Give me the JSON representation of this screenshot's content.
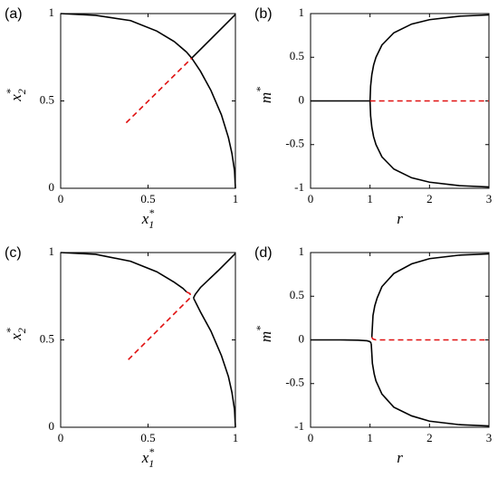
{
  "chart_data": [
    {
      "panel_label": "(a)",
      "type": "line",
      "xlabel": "x1*",
      "ylabel": "x2*",
      "xlim": [
        0,
        1
      ],
      "ylim": [
        0,
        1
      ],
      "xticks": [
        "0",
        "0.5",
        "1"
      ],
      "yticks": [
        "0",
        "0.5",
        "1"
      ],
      "series": [
        {
          "style": "solid-black",
          "x": [
            0,
            0.2,
            0.4,
            0.55,
            0.65,
            0.72,
            0.75,
            0.8,
            0.86,
            0.92,
            0.96,
            0.98,
            0.995,
            1.0
          ],
          "y": [
            1.0,
            0.99,
            0.96,
            0.9,
            0.84,
            0.78,
            0.745,
            0.67,
            0.56,
            0.42,
            0.29,
            0.2,
            0.1,
            0.0
          ]
        },
        {
          "style": "solid-black",
          "x": [
            0.75,
            0.8,
            0.9,
            1.0
          ],
          "y": [
            0.745,
            0.795,
            0.895,
            0.995
          ]
        },
        {
          "style": "dashed-red",
          "x": [
            0.375,
            0.75
          ],
          "y": [
            0.375,
            0.745
          ]
        }
      ]
    },
    {
      "panel_label": "(b)",
      "type": "line",
      "xlabel": "r",
      "ylabel": "m*",
      "xlim": [
        0,
        3
      ],
      "ylim": [
        -1,
        1
      ],
      "xticks": [
        "0",
        "1",
        "2",
        "3"
      ],
      "yticks": [
        "-1",
        "-0.5",
        "0",
        "0.5",
        "1"
      ],
      "series": [
        {
          "style": "solid-black",
          "x": [
            0,
            1.0
          ],
          "y": [
            0,
            0
          ]
        },
        {
          "style": "solid-black",
          "x": [
            1.0,
            1.01,
            1.03,
            1.06,
            1.1,
            1.2,
            1.4,
            1.7,
            2.0,
            2.5,
            3.0
          ],
          "y": [
            0.0,
            0.17,
            0.3,
            0.41,
            0.5,
            0.64,
            0.78,
            0.88,
            0.93,
            0.97,
            0.985
          ]
        },
        {
          "style": "solid-black",
          "x": [
            1.0,
            1.01,
            1.03,
            1.06,
            1.1,
            1.2,
            1.4,
            1.7,
            2.0,
            2.5,
            3.0
          ],
          "y": [
            0.0,
            -0.17,
            -0.3,
            -0.41,
            -0.5,
            -0.64,
            -0.78,
            -0.88,
            -0.93,
            -0.97,
            -0.985
          ]
        },
        {
          "style": "dashed-red",
          "x": [
            1.0,
            3.0
          ],
          "y": [
            0,
            0
          ]
        }
      ]
    },
    {
      "panel_label": "(c)",
      "type": "line",
      "xlabel": "x1*",
      "ylabel": "x2*",
      "xlim": [
        0,
        1
      ],
      "ylim": [
        0,
        1
      ],
      "xticks": [
        "0",
        "0.5",
        "1"
      ],
      "yticks": [
        "0",
        "0.5",
        "1"
      ],
      "series": [
        {
          "style": "solid-black",
          "x": [
            0,
            0.2,
            0.4,
            0.55,
            0.65,
            0.7,
            0.72
          ],
          "y": [
            1.0,
            0.99,
            0.95,
            0.89,
            0.83,
            0.795,
            0.775
          ]
        },
        {
          "style": "solid-black",
          "x": [
            0.76,
            0.8,
            0.86,
            0.92,
            0.96,
            0.98,
            0.995,
            1.0
          ],
          "y": [
            0.74,
            0.66,
            0.55,
            0.41,
            0.29,
            0.2,
            0.1,
            0.0
          ]
        },
        {
          "style": "solid-black",
          "x": [
            0.76,
            0.77,
            0.8,
            0.9,
            1.0
          ],
          "y": [
            0.74,
            0.76,
            0.8,
            0.895,
            0.995
          ]
        },
        {
          "style": "dashed-red",
          "x": [
            0.72,
            0.74,
            0.745,
            0.7,
            0.6,
            0.5,
            0.385
          ],
          "y": [
            0.775,
            0.765,
            0.745,
            0.7,
            0.6,
            0.5,
            0.385
          ]
        }
      ]
    },
    {
      "panel_label": "(d)",
      "type": "line",
      "xlabel": "r",
      "ylabel": "m*",
      "xlim": [
        0,
        3
      ],
      "ylim": [
        -1,
        1
      ],
      "xticks": [
        "0",
        "1",
        "2",
        "3"
      ],
      "yticks": [
        "-1",
        "-0.5",
        "0",
        "0.5",
        "1"
      ],
      "series": [
        {
          "style": "solid-black",
          "x": [
            0,
            0.5,
            0.8,
            0.95,
            1.0,
            1.02
          ],
          "y": [
            0.0,
            0.0,
            -0.003,
            -0.01,
            -0.02,
            -0.04
          ]
        },
        {
          "style": "solid-black",
          "x": [
            1.02,
            1.04,
            1.07,
            1.1,
            1.2,
            1.4,
            1.7,
            2.0,
            2.5,
            3.0
          ],
          "y": [
            -0.04,
            -0.27,
            -0.39,
            -0.47,
            -0.62,
            -0.77,
            -0.87,
            -0.93,
            -0.97,
            -0.985
          ]
        },
        {
          "style": "solid-black",
          "x": [
            1.03,
            1.05,
            1.08,
            1.12,
            1.2,
            1.4,
            1.7,
            2.0,
            2.5,
            3.0
          ],
          "y": [
            0.03,
            0.28,
            0.39,
            0.48,
            0.61,
            0.76,
            0.87,
            0.93,
            0.97,
            0.985
          ]
        },
        {
          "style": "dashed-red",
          "x": [
            1.03,
            1.05,
            1.1,
            3.0
          ],
          "y": [
            0.03,
            0.01,
            0.0,
            0.0
          ]
        }
      ]
    }
  ]
}
